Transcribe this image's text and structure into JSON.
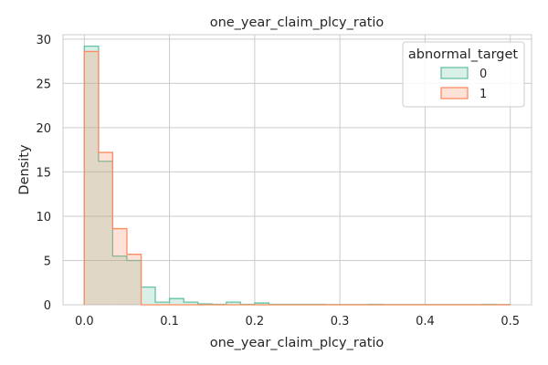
{
  "chart_data": {
    "type": "histogram",
    "title": "one_year_claim_plcy_ratio",
    "xlabel": "one_year_claim_plcy_ratio",
    "ylabel": "Density",
    "xlim": [
      -0.025,
      0.525
    ],
    "ylim": [
      0,
      30.5
    ],
    "xticks": [
      0.0,
      0.1,
      0.2,
      0.3,
      0.4,
      0.5
    ],
    "xtick_labels": [
      "0.0",
      "0.1",
      "0.2",
      "0.3",
      "0.4",
      "0.5"
    ],
    "yticks": [
      0,
      5,
      10,
      15,
      20,
      25,
      30
    ],
    "ytick_labels": [
      "0",
      "5",
      "10",
      "15",
      "20",
      "25",
      "30"
    ],
    "grid": true,
    "bin_edges": [
      0.0,
      0.0167,
      0.0333,
      0.05,
      0.0667,
      0.0833,
      0.1,
      0.1167,
      0.1333,
      0.15,
      0.1667,
      0.1833,
      0.2,
      0.2167,
      0.2333,
      0.25,
      0.2667,
      0.2833,
      0.3,
      0.3167,
      0.3333,
      0.35,
      0.3667,
      0.3833,
      0.4,
      0.4167,
      0.4333,
      0.45,
      0.4667,
      0.4833,
      0.5
    ],
    "legend": {
      "title": "abnormal_target",
      "position": "upper right"
    },
    "series": [
      {
        "name": "0",
        "color": "#66c2a5",
        "values": [
          29.2,
          16.2,
          5.5,
          5.0,
          2.0,
          0.3,
          0.7,
          0.3,
          0.1,
          0.05,
          0.3,
          0.05,
          0.2,
          0.05,
          0.05,
          0.05,
          0.05,
          0.02,
          0.02,
          0.02,
          0.05,
          0.02,
          0.02,
          0.02,
          0.02,
          0.02,
          0.02,
          0.02,
          0.05,
          0.02
        ]
      },
      {
        "name": "1",
        "color": "#fc8d62",
        "values": [
          28.6,
          17.2,
          8.6,
          5.7,
          0,
          0,
          0,
          0,
          0,
          0,
          0,
          0,
          0,
          0,
          0,
          0,
          0,
          0,
          0,
          0,
          0,
          0,
          0,
          0,
          0,
          0,
          0,
          0,
          0,
          0
        ]
      }
    ]
  }
}
